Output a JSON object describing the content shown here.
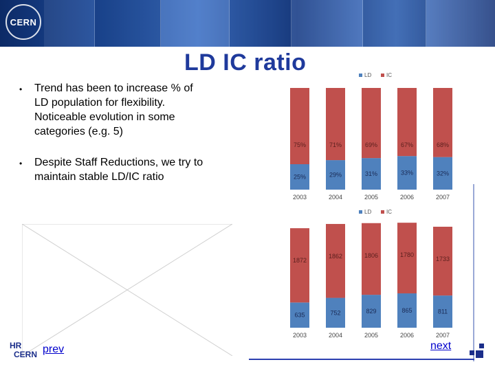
{
  "header": {
    "logo_text": "CERN"
  },
  "slide": {
    "title": "LD IC ratio",
    "bullets": [
      "Trend has been to increase % of LD population for flexibility. Noticeable evolution in some categories (e.g. 5)",
      "Despite Staff Reductions, we try to maintain stable LD/IC ratio"
    ],
    "bullet_glyph": "•"
  },
  "footer": {
    "hr_logo_top": "HR",
    "hr_logo_bottom": "CERN",
    "prev_label": "prev",
    "next_label": "next"
  },
  "colors": {
    "ld": "#4f81bd",
    "ic": "#c0504d",
    "title": "#1f3a9c",
    "link": "#0000cc"
  },
  "chart_data": [
    {
      "type": "bar",
      "stacked": true,
      "categories": [
        "2003",
        "2004",
        "2005",
        "2006",
        "2007"
      ],
      "series": [
        {
          "name": "LD",
          "values": [
            25,
            29,
            31,
            33,
            32
          ],
          "labels": [
            "25%",
            "29%",
            "31%",
            "33%",
            "32%"
          ]
        },
        {
          "name": "IC",
          "values": [
            75,
            71,
            69,
            67,
            68
          ],
          "labels": [
            "75%",
            "71%",
            "69%",
            "67%",
            "68%"
          ]
        }
      ],
      "legend": "top-center",
      "ylim": [
        0,
        100
      ]
    },
    {
      "type": "bar",
      "stacked": true,
      "categories": [
        "2003",
        "2004",
        "2005",
        "2006",
        "2007"
      ],
      "series": [
        {
          "name": "LD",
          "values": [
            635,
            752,
            829,
            865,
            811
          ],
          "labels": [
            "635",
            "752",
            "829",
            "865",
            "811"
          ]
        },
        {
          "name": "IC",
          "values": [
            1872,
            1862,
            1806,
            1780,
            1733
          ],
          "labels": [
            "1872",
            "1862",
            "1806",
            "1780",
            "1733"
          ]
        }
      ],
      "legend": "top-center",
      "ylim": [
        0,
        2700
      ]
    }
  ]
}
